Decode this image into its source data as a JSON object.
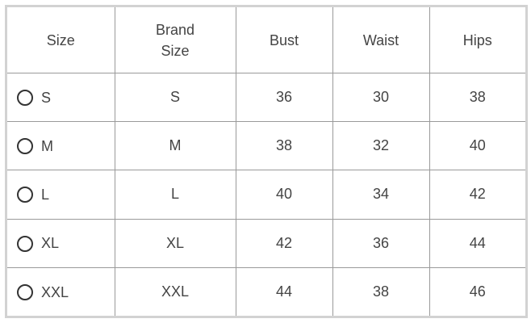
{
  "headers": [
    "Size",
    "Brand Size",
    "Bust",
    "Waist",
    "Hips"
  ],
  "header_brand_lines": [
    "Brand",
    "Size"
  ],
  "rows": [
    {
      "size": "S",
      "brand": "S",
      "bust": "36",
      "waist": "30",
      "hips": "38",
      "selected": false
    },
    {
      "size": "M",
      "brand": "M",
      "bust": "38",
      "waist": "32",
      "hips": "40",
      "selected": false
    },
    {
      "size": "L",
      "brand": "L",
      "bust": "40",
      "waist": "34",
      "hips": "42",
      "selected": false
    },
    {
      "size": "XL",
      "brand": "XL",
      "bust": "42",
      "waist": "36",
      "hips": "44",
      "selected": false
    },
    {
      "size": "XXL",
      "brand": "XXL",
      "bust": "44",
      "waist": "38",
      "hips": "46",
      "selected": false
    }
  ]
}
